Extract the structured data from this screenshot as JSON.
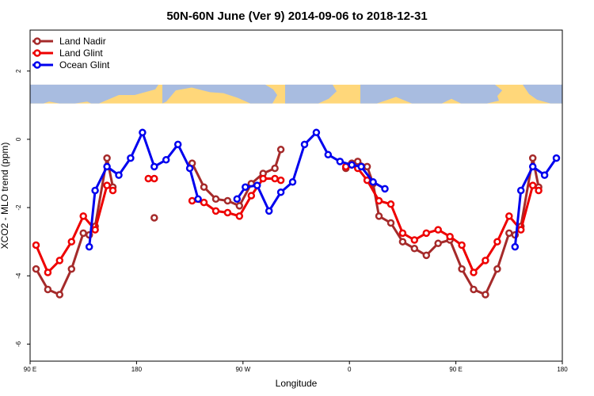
{
  "chart_data": {
    "type": "line",
    "title": "50N-60N June (Ver 9)   2014-09-06 to 2018-12-31",
    "xlabel": "Longitude",
    "ylabel": "XCO2 - MLO trend (ppm)",
    "xlim": [
      90,
      540
    ],
    "ylim": [
      -6.5,
      3.2
    ],
    "x_ticks": [
      {
        "value": 90,
        "label": "90 E"
      },
      {
        "value": 180,
        "label": "180"
      },
      {
        "value": 270,
        "label": "90 W"
      },
      {
        "value": 360,
        "label": "0"
      },
      {
        "value": 450,
        "label": "90 E"
      },
      {
        "value": 540,
        "label": "180"
      }
    ],
    "y_ticks": [
      {
        "value": -6,
        "label": "-6"
      },
      {
        "value": -4,
        "label": "-4"
      },
      {
        "value": -2,
        "label": "-2"
      },
      {
        "value": 0,
        "label": "0"
      },
      {
        "value": 2,
        "label": "2"
      }
    ],
    "map_band": {
      "y_top": 1.6,
      "y_bottom": 1.05,
      "land_color": "#ffd77a",
      "ocean_color": "#a8bce0"
    },
    "legend_position": "top-left",
    "series": [
      {
        "name": "Land Nadir",
        "color": "#a52a2a",
        "segments": [
          [
            [
              95,
              -3.8
            ],
            [
              105,
              -4.4
            ],
            [
              115,
              -4.55
            ],
            [
              125,
              -3.8
            ],
            [
              135,
              -2.75
            ],
            [
              140,
              -2.8
            ],
            [
              145,
              -2.55
            ],
            [
              155,
              -0.55
            ],
            [
              160,
              -1.4
            ]
          ],
          [
            [
              195,
              -2.3
            ]
          ],
          [
            [
              227,
              -0.7
            ],
            [
              237,
              -1.4
            ],
            [
              247,
              -1.75
            ],
            [
              257,
              -1.8
            ],
            [
              267,
              -1.95
            ],
            [
              277,
              -1.3
            ],
            [
              287,
              -1.0
            ],
            [
              297,
              -0.85
            ],
            [
              302,
              -0.3
            ]
          ],
          [
            [
              357,
              -0.85
            ],
            [
              362,
              -0.7
            ],
            [
              367,
              -0.65
            ],
            [
              375,
              -0.8
            ],
            [
              380,
              -1.3
            ],
            [
              385,
              -2.25
            ],
            [
              395,
              -2.45
            ],
            [
              405,
              -3.0
            ],
            [
              415,
              -3.2
            ],
            [
              425,
              -3.4
            ],
            [
              435,
              -3.05
            ],
            [
              445,
              -2.95
            ],
            [
              455,
              -3.8
            ],
            [
              465,
              -4.4
            ],
            [
              475,
              -4.55
            ],
            [
              485,
              -3.8
            ],
            [
              495,
              -2.75
            ],
            [
              500,
              -2.8
            ],
            [
              505,
              -2.55
            ],
            [
              515,
              -0.55
            ],
            [
              520,
              -1.4
            ]
          ]
        ]
      },
      {
        "name": "Land Glint",
        "color": "#ee0000",
        "segments": [
          [
            [
              95,
              -3.1
            ],
            [
              105,
              -3.9
            ],
            [
              115,
              -3.55
            ],
            [
              125,
              -3.0
            ],
            [
              135,
              -2.25
            ],
            [
              145,
              -2.65
            ],
            [
              155,
              -1.35
            ],
            [
              160,
              -1.5
            ]
          ],
          [
            [
              190,
              -1.15
            ],
            [
              195,
              -1.15
            ]
          ],
          [
            [
              227,
              -1.8
            ],
            [
              237,
              -1.85
            ],
            [
              247,
              -2.1
            ],
            [
              257,
              -2.15
            ],
            [
              267,
              -2.25
            ],
            [
              277,
              -1.65
            ],
            [
              287,
              -1.15
            ],
            [
              297,
              -1.15
            ],
            [
              302,
              -1.2
            ]
          ],
          [
            [
              357,
              -0.8
            ],
            [
              362,
              -0.75
            ],
            [
              367,
              -0.85
            ],
            [
              375,
              -1.2
            ],
            [
              385,
              -1.8
            ],
            [
              395,
              -1.9
            ],
            [
              405,
              -2.75
            ],
            [
              415,
              -2.95
            ],
            [
              425,
              -2.75
            ],
            [
              435,
              -2.65
            ],
            [
              445,
              -2.85
            ],
            [
              455,
              -3.1
            ],
            [
              465,
              -3.9
            ],
            [
              475,
              -3.55
            ],
            [
              485,
              -3.0
            ],
            [
              495,
              -2.25
            ],
            [
              505,
              -2.65
            ],
            [
              515,
              -1.35
            ],
            [
              520,
              -1.5
            ]
          ]
        ]
      },
      {
        "name": "Ocean Glint",
        "color": "#0000ee",
        "segments": [
          [
            [
              140,
              -3.15
            ],
            [
              145,
              -1.5
            ],
            [
              155,
              -0.8
            ],
            [
              165,
              -1.05
            ],
            [
              175,
              -0.55
            ],
            [
              185,
              0.2
            ],
            [
              195,
              -0.8
            ],
            [
              205,
              -0.6
            ],
            [
              215,
              -0.15
            ],
            [
              225,
              -0.85
            ],
            [
              232,
              -1.75
            ]
          ],
          [
            [
              265,
              -1.75
            ],
            [
              272,
              -1.4
            ],
            [
              282,
              -1.35
            ],
            [
              292,
              -2.1
            ],
            [
              302,
              -1.55
            ],
            [
              312,
              -1.25
            ],
            [
              322,
              -0.15
            ],
            [
              332,
              0.2
            ],
            [
              342,
              -0.45
            ],
            [
              352,
              -0.65
            ],
            [
              362,
              -0.75
            ],
            [
              370,
              -0.8
            ],
            [
              380,
              -1.25
            ],
            [
              390,
              -1.45
            ]
          ],
          [
            [
              500,
              -3.15
            ],
            [
              505,
              -1.5
            ],
            [
              515,
              -0.8
            ],
            [
              525,
              -1.05
            ],
            [
              535,
              -0.55
            ]
          ]
        ]
      }
    ]
  }
}
